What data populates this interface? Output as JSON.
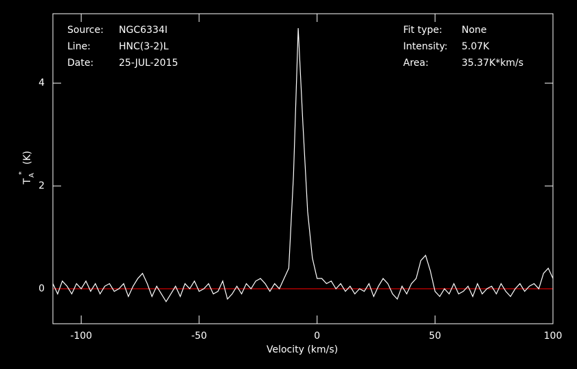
{
  "chart_data": {
    "type": "line",
    "xlabel": "Velocity (km/s)",
    "ylabel": {
      "symbol": "T",
      "subscript": "A",
      "superscript": "*",
      "unit": "(K)"
    },
    "annotations_left": [
      [
        "Source:",
        "NGC6334I"
      ],
      [
        "Line:",
        "HNC(3-2)L"
      ],
      [
        "Date:",
        "25-JUL-2015"
      ]
    ],
    "annotations_right": [
      [
        "Fit type:",
        "None"
      ],
      [
        "Intensity:",
        "5.07K"
      ],
      [
        "Area:",
        "35.37K*km/s"
      ]
    ],
    "xlim": [
      -112,
      100
    ],
    "ylim": [
      -0.68,
      5.35
    ],
    "xticks": [
      -100,
      -50,
      0,
      50,
      100
    ],
    "yticks": [
      0,
      2,
      4
    ],
    "baseline": 0,
    "baseline_color": "#d00000",
    "x": [
      -112,
      -110,
      -108,
      -106,
      -104,
      -102,
      -100,
      -98,
      -96,
      -94,
      -92,
      -90,
      -88,
      -86,
      -84,
      -82,
      -80,
      -78,
      -76,
      -74,
      -72,
      -70,
      -68,
      -66,
      -64,
      -62,
      -60,
      -58,
      -56,
      -54,
      -52,
      -50,
      -48,
      -46,
      -44,
      -42,
      -40,
      -38,
      -36,
      -34,
      -32,
      -30,
      -28,
      -26,
      -24,
      -22,
      -20,
      -18,
      -16,
      -14,
      -12,
      -10,
      -8,
      -6,
      -4,
      -2,
      0,
      2,
      4,
      6,
      8,
      10,
      12,
      14,
      16,
      18,
      20,
      22,
      24,
      26,
      28,
      30,
      32,
      34,
      36,
      38,
      40,
      42,
      44,
      46,
      48,
      50,
      52,
      54,
      56,
      58,
      60,
      62,
      64,
      66,
      68,
      70,
      72,
      74,
      76,
      78,
      80,
      82,
      84,
      86,
      88,
      90,
      92,
      94,
      96,
      98,
      100
    ],
    "series": [
      {
        "name": "HNC(3-2)L",
        "color": "#ffffff",
        "values": [
          0.1,
          -0.1,
          0.15,
          0.05,
          -0.1,
          0.1,
          0.0,
          0.15,
          -0.05,
          0.1,
          -0.1,
          0.05,
          0.1,
          -0.05,
          0.0,
          0.1,
          -0.15,
          0.05,
          0.2,
          0.3,
          0.1,
          -0.15,
          0.05,
          -0.1,
          -0.25,
          -0.1,
          0.05,
          -0.15,
          0.1,
          0.0,
          0.15,
          -0.05,
          0.0,
          0.1,
          -0.1,
          -0.05,
          0.15,
          -0.2,
          -0.1,
          0.05,
          -0.1,
          0.1,
          0.0,
          0.15,
          0.2,
          0.1,
          -0.05,
          0.1,
          0.0,
          0.2,
          0.4,
          2.2,
          5.07,
          3.2,
          1.5,
          0.6,
          0.2,
          0.2,
          0.1,
          0.15,
          0.0,
          0.1,
          -0.05,
          0.05,
          -0.1,
          0.0,
          -0.05,
          0.1,
          -0.15,
          0.05,
          0.2,
          0.1,
          -0.1,
          -0.2,
          0.05,
          -0.1,
          0.1,
          0.2,
          0.55,
          0.65,
          0.35,
          -0.05,
          -0.15,
          0.0,
          -0.1,
          0.1,
          -0.1,
          -0.05,
          0.05,
          -0.15,
          0.1,
          -0.1,
          0.0,
          0.05,
          -0.1,
          0.1,
          -0.05,
          -0.15,
          0.0,
          0.1,
          -0.05,
          0.05,
          0.1,
          0.0,
          0.3,
          0.4,
          0.2
        ]
      }
    ]
  }
}
